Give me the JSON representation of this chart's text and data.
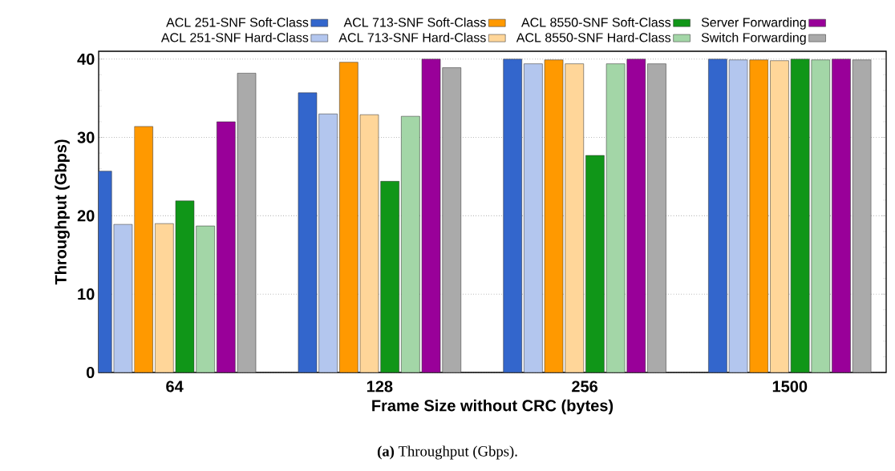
{
  "chart_data": {
    "type": "bar",
    "xlabel": "Frame Size without CRC (bytes)",
    "ylabel": "Throughput (Gbps)",
    "categories": [
      "64",
      "128",
      "256",
      "1500"
    ],
    "series": [
      {
        "name": "ACL 251-SNF  Soft-Class",
        "color": "#3366cc",
        "values": [
          25.7,
          35.7,
          40.0,
          40.0
        ]
      },
      {
        "name": "ACL 251-SNF Hard-Class",
        "color": "#b3c6ee",
        "values": [
          18.9,
          33.0,
          39.4,
          39.9
        ]
      },
      {
        "name": "ACL 713-SNF  Soft-Class",
        "color": "#ff9900",
        "values": [
          31.4,
          39.6,
          39.9,
          39.9
        ]
      },
      {
        "name": "ACL 713-SNF Hard-Class",
        "color": "#ffd699",
        "values": [
          19.0,
          32.9,
          39.4,
          39.8
        ]
      },
      {
        "name": "ACL 8550-SNF  Soft-Class",
        "color": "#109618",
        "values": [
          21.9,
          24.4,
          27.7,
          40.0
        ]
      },
      {
        "name": "ACL 8550-SNF Hard-Class",
        "color": "#a3d6a7",
        "values": [
          18.7,
          32.7,
          39.4,
          39.9
        ]
      },
      {
        "name": "Server Forwarding",
        "color": "#990099",
        "values": [
          32.0,
          40.0,
          40.0,
          40.0
        ]
      },
      {
        "name": "Switch Forwarding",
        "color": "#aaaaaa",
        "values": [
          38.2,
          38.9,
          39.4,
          39.9
        ]
      }
    ],
    "ylim": [
      0,
      41
    ],
    "yticks": [
      0,
      10,
      20,
      30,
      40
    ],
    "grid": "y",
    "legend": "top",
    "annotations": [
      "**(a)**  Throughput (Gbps)."
    ]
  }
}
